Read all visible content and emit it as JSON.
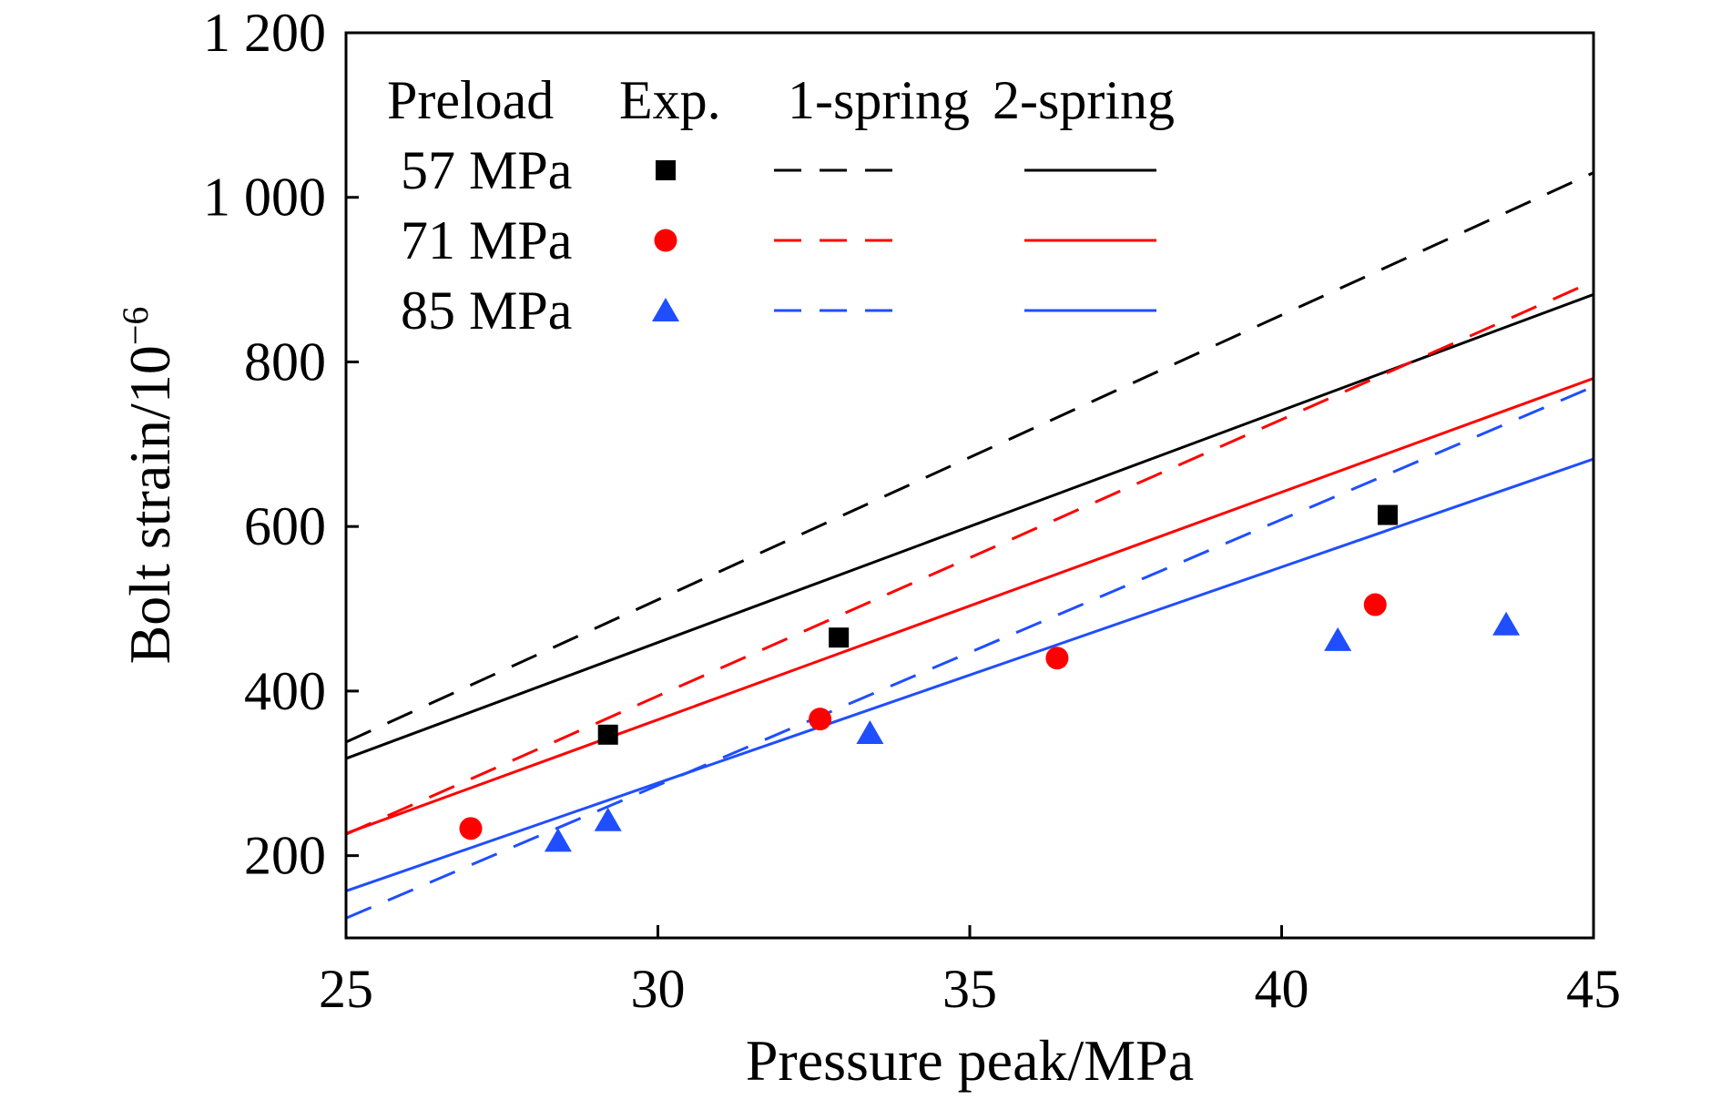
{
  "chart_data": {
    "type": "scatter",
    "xlabel": "Pressure peak/MPa",
    "ylabel": "Bolt strain/10",
    "ylabel_sup": "−6",
    "xlim": [
      25,
      45
    ],
    "ylim": [
      100,
      1200
    ],
    "xticks": [
      25,
      30,
      35,
      40,
      45
    ],
    "yticks": [
      200,
      400,
      600,
      800,
      1000,
      1200
    ],
    "xtick_labels": [
      "25",
      "30",
      "35",
      "40",
      "45"
    ],
    "ytick_labels": [
      "200",
      "400",
      "600",
      "800",
      "1 000",
      "1 200"
    ],
    "legend": {
      "placement": "top-left",
      "headers": [
        "Preload",
        "Exp.",
        "1-spring",
        "2-spring"
      ],
      "rows": [
        {
          "preload": "57 MPa",
          "color": "#000000",
          "marker": "square"
        },
        {
          "preload": "71 MPa",
          "color": "#ff0000",
          "marker": "circle"
        },
        {
          "preload": "85 MPa",
          "color": "#1f4eff",
          "marker": "triangle"
        }
      ]
    },
    "series": [
      {
        "preload": "57 MPa",
        "color": "#000000",
        "marker": "square",
        "experiment": [
          [
            29.2,
            347
          ],
          [
            32.9,
            465
          ],
          [
            41.7,
            614
          ]
        ],
        "one_spring": [
          [
            25,
            338
          ],
          [
            45,
            1030
          ]
        ],
        "two_spring": [
          [
            25,
            318
          ],
          [
            45,
            882
          ]
        ]
      },
      {
        "preload": "71 MPa",
        "color": "#ff0000",
        "marker": "circle",
        "experiment": [
          [
            27.0,
            233
          ],
          [
            32.6,
            366
          ],
          [
            36.4,
            440
          ],
          [
            41.5,
            505
          ]
        ],
        "one_spring": [
          [
            25,
            226
          ],
          [
            45,
            898
          ]
        ],
        "two_spring": [
          [
            25,
            227
          ],
          [
            45,
            780
          ]
        ]
      },
      {
        "preload": "85 MPa",
        "color": "#1f4eff",
        "marker": "triangle",
        "experiment": [
          [
            28.4,
            218
          ],
          [
            29.2,
            243
          ],
          [
            33.4,
            349
          ],
          [
            40.9,
            462
          ],
          [
            43.6,
            481
          ]
        ],
        "one_spring": [
          [
            25,
            124
          ],
          [
            45,
            770
          ]
        ],
        "two_spring": [
          [
            25,
            157
          ],
          [
            45,
            682
          ]
        ]
      }
    ]
  }
}
